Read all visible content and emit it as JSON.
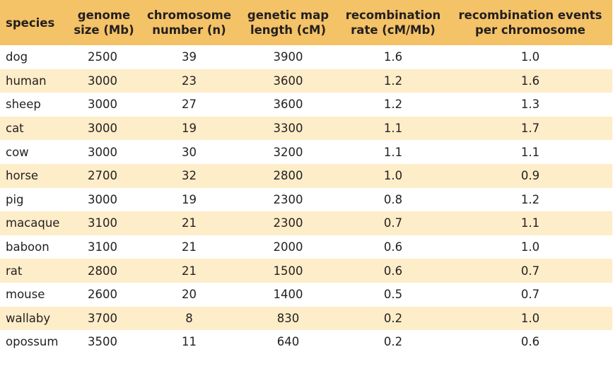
{
  "table": {
    "headers": [
      [
        "species"
      ],
      [
        "genome",
        "size (Mb)"
      ],
      [
        "chromosome",
        "number (n)"
      ],
      [
        "genetic map",
        "length (cM)"
      ],
      [
        "recombination",
        "rate (cM/Mb)"
      ],
      [
        "recombination events",
        "per chromosome"
      ]
    ],
    "rows": [
      [
        "dog",
        "2500",
        "39",
        "3900",
        "1.6",
        "1.0"
      ],
      [
        "human",
        "3000",
        "23",
        "3600",
        "1.2",
        "1.6"
      ],
      [
        "sheep",
        "3000",
        "27",
        "3600",
        "1.2",
        "1.3"
      ],
      [
        "cat",
        "3000",
        "19",
        "3300",
        "1.1",
        "1.7"
      ],
      [
        "cow",
        "3000",
        "30",
        "3200",
        "1.1",
        "1.1"
      ],
      [
        "horse",
        "2700",
        "32",
        "2800",
        "1.0",
        "0.9"
      ],
      [
        "pig",
        "3000",
        "19",
        "2300",
        "0.8",
        "1.2"
      ],
      [
        "macaque",
        "3100",
        "21",
        "2300",
        "0.7",
        "1.1"
      ],
      [
        "baboon",
        "3100",
        "21",
        "2000",
        "0.6",
        "1.0"
      ],
      [
        "rat",
        "2800",
        "21",
        "1500",
        "0.6",
        "0.7"
      ],
      [
        "mouse",
        "2600",
        "20",
        "1400",
        "0.5",
        "0.7"
      ],
      [
        "wallaby",
        "3700",
        "8",
        "830",
        "0.2",
        "1.0"
      ],
      [
        "opossum",
        "3500",
        "11",
        "640",
        "0.2",
        "0.6"
      ]
    ]
  },
  "colors": {
    "header_bg": "#f4c267",
    "stripe_bg": "#fdedc9",
    "row_bg": "#ffffff",
    "text": "#231f20"
  }
}
